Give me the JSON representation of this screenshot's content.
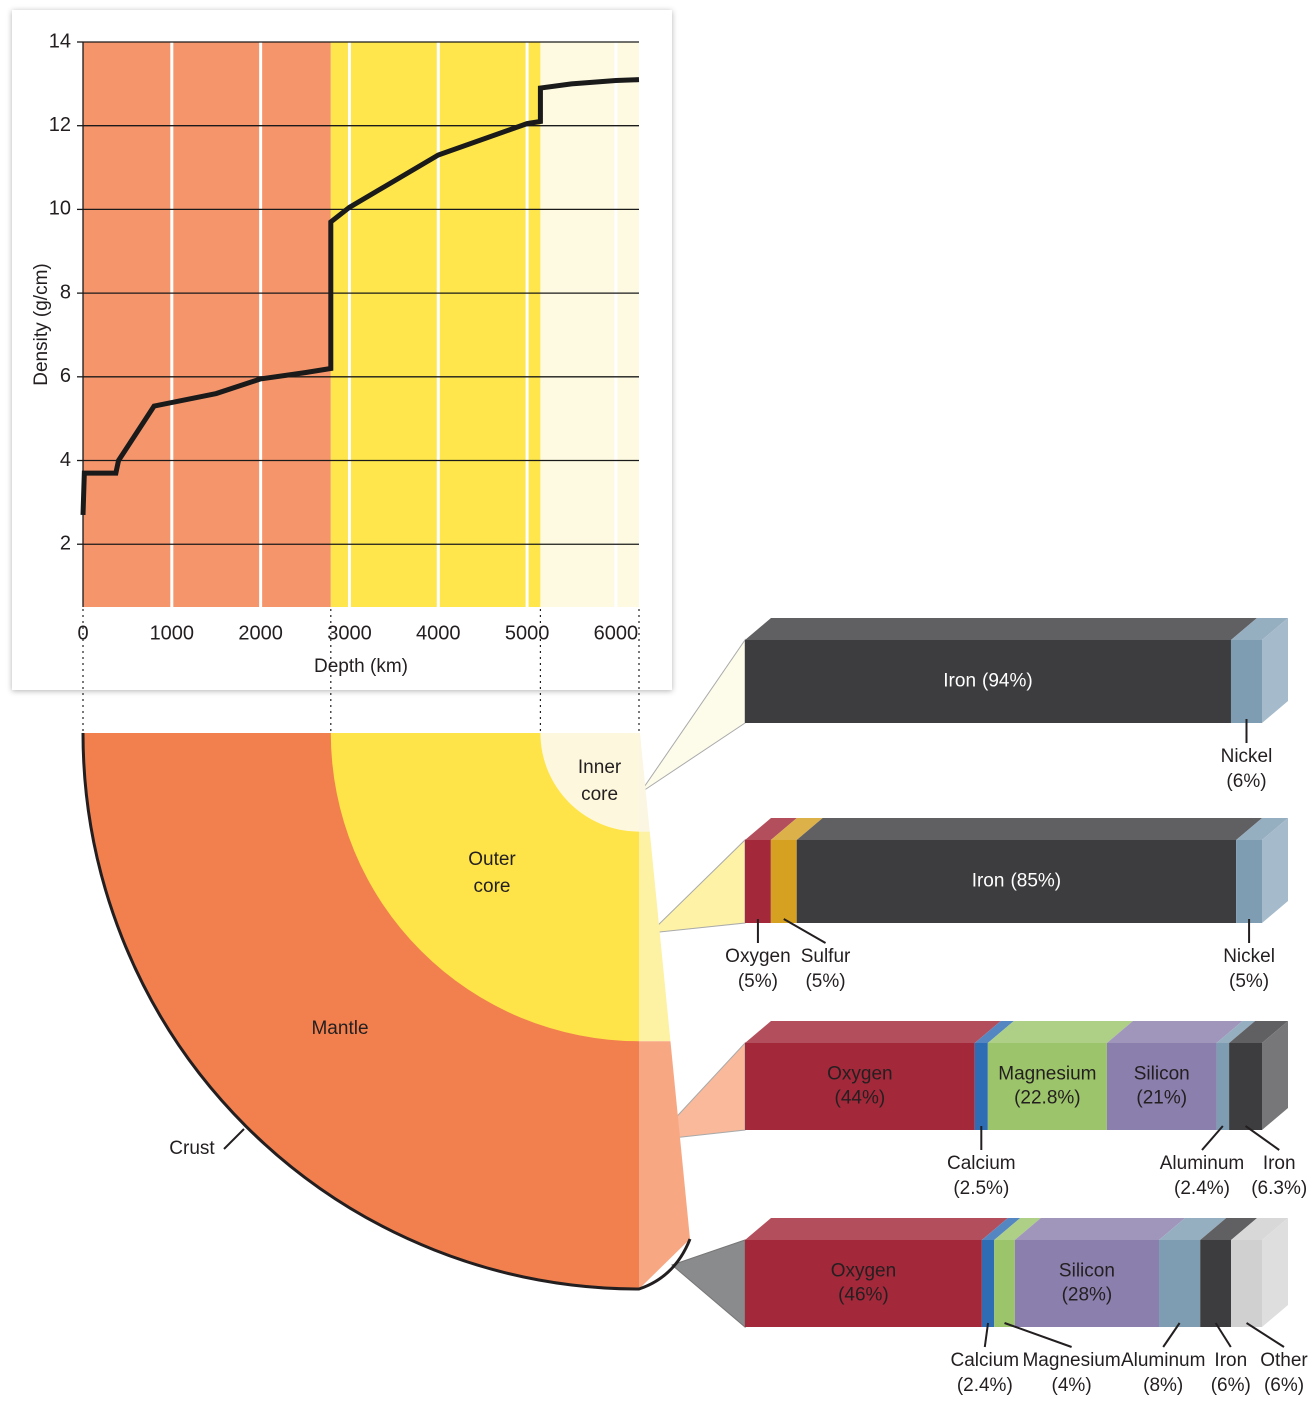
{
  "chart_data": [
    {
      "type": "line",
      "x_label": "Depth (km)",
      "y_label": "Density (g/cm)",
      "x": [
        0,
        15,
        370,
        400,
        800,
        1500,
        2000,
        2500,
        2790,
        2790,
        3000,
        4000,
        5000,
        5150,
        5150,
        5500,
        6000,
        6260
      ],
      "values": [
        2.7,
        3.7,
        3.7,
        4.0,
        5.3,
        5.6,
        5.95,
        6.1,
        6.2,
        9.7,
        10.05,
        11.3,
        12.05,
        12.1,
        12.9,
        13.0,
        13.08,
        13.1
      ],
      "color": "#1a1a1a",
      "xlim": [
        0,
        6260
      ],
      "ylim": [
        0.5,
        14
      ],
      "xticks": [
        0,
        1000,
        2000,
        3000,
        4000,
        5000,
        6000
      ],
      "yticks": [
        2,
        4,
        6,
        8,
        10,
        12,
        14
      ],
      "grid": true,
      "bands": [
        {
          "from": 0,
          "to": 2790,
          "color": "#f5956c"
        },
        {
          "from": 2790,
          "to": 5150,
          "color": "#fee64c"
        },
        {
          "from": 5150,
          "to": 6260,
          "color": "#fefae2"
        }
      ]
    },
    {
      "type": "bar",
      "stacked": true,
      "categories": [
        "Iron",
        "Nickel"
      ],
      "values": [
        94,
        6
      ],
      "value_labels": [
        "(94%)",
        "(6%)"
      ],
      "colors": [
        "#3d3d3f",
        "#7e9db3"
      ]
    },
    {
      "type": "bar",
      "stacked": true,
      "categories": [
        "Oxygen",
        "Sulfur",
        "Iron",
        "Nickel"
      ],
      "values": [
        5,
        5,
        85,
        5
      ],
      "value_labels": [
        "(5%)",
        "(5%)",
        "(85%)",
        "(5%)"
      ],
      "colors": [
        "#a2283a",
        "#d6a021",
        "#3d3d3f",
        "#7e9db3"
      ]
    },
    {
      "type": "bar",
      "stacked": true,
      "categories": [
        "Oxygen",
        "Calcium",
        "Magnesium",
        "Silicon",
        "Aluminum",
        "Iron"
      ],
      "values": [
        44,
        2.5,
        22.8,
        21,
        2.4,
        6.3
      ],
      "value_labels": [
        "(44%)",
        "(2.5%)",
        "(22.8%)",
        "(21%)",
        "(2.4%)",
        "(6.3%)"
      ],
      "colors": [
        "#a2283a",
        "#2e6db4",
        "#9cc46b",
        "#8b7fad",
        "#7e9db3",
        "#3d3d3f"
      ]
    },
    {
      "type": "bar",
      "stacked": true,
      "categories": [
        "Oxygen",
        "Calcium",
        "Magnesium",
        "Silicon",
        "Aluminum",
        "Iron",
        "Other"
      ],
      "values": [
        46,
        2.4,
        4,
        28,
        8,
        6,
        6
      ],
      "value_labels": [
        "(46%)",
        "(2.4%)",
        "(4%)",
        "(28%)",
        "(8%)",
        "(6%)",
        "(6%)"
      ],
      "colors": [
        "#a2283a",
        "#2e6db4",
        "#9cc46b",
        "#8b7fad",
        "#7e9db3",
        "#3d3d3f",
        "#d0d0d0"
      ]
    }
  ],
  "diagram": {
    "inner_core": [
      "Inner",
      "core"
    ],
    "outer_core": [
      "Outer",
      "core"
    ],
    "mantle": "Mantle",
    "crust": "Crust"
  }
}
